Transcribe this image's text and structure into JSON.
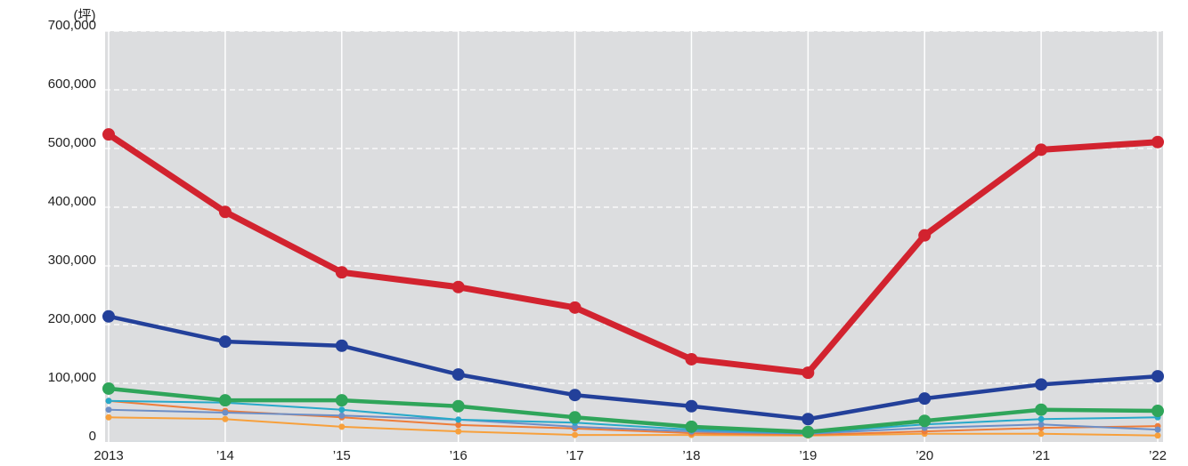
{
  "chart_data": {
    "type": "line",
    "ylabel": "(坪)",
    "categories": [
      "2013",
      "’14",
      "’15",
      "’16",
      "’17",
      "’18",
      "’19",
      "’20",
      "’21",
      "’22"
    ],
    "ylim": [
      0,
      700000
    ],
    "yticks": [
      0,
      {
        "value": 100000,
        "label": "100,000"
      },
      {
        "value": 200000,
        "label": "200,000"
      },
      {
        "value": 300000,
        "label": "300,000"
      },
      {
        "value": 400000,
        "label": "400,000"
      },
      {
        "value": 500000,
        "label": "500,000"
      },
      {
        "value": 600000,
        "label": "600,000"
      },
      {
        "value": 700000,
        "label": "700,000"
      }
    ],
    "grid": true,
    "series": [
      {
        "color": "#f7a03c",
        "values": [
          42000,
          39000,
          26000,
          18000,
          12000,
          12000,
          11000,
          14000,
          14000,
          11000
        ]
      },
      {
        "color": "#ee7d3a",
        "values": [
          70000,
          53000,
          42000,
          29000,
          23000,
          15000,
          12000,
          18000,
          24000,
          27000
        ]
      },
      {
        "color": "#6d8fc7",
        "values": [
          55000,
          50000,
          45000,
          38000,
          26000,
          18000,
          14000,
          24000,
          30000,
          21000
        ]
      },
      {
        "color": "#27a9c9",
        "values": [
          70000,
          67000,
          55000,
          38000,
          33000,
          21000,
          15000,
          30000,
          39000,
          42000
        ]
      },
      {
        "color": "#2fa55a",
        "values": [
          91000,
          71000,
          71000,
          61000,
          42000,
          26000,
          17000,
          36000,
          55000,
          53000
        ]
      },
      {
        "color": "#23409a",
        "values": [
          214000,
          171000,
          164000,
          115000,
          80000,
          61000,
          39000,
          74000,
          98000,
          112000
        ]
      },
      {
        "color": "#d2232f",
        "values": [
          524000,
          392000,
          289000,
          264000,
          229000,
          141000,
          118000,
          352000,
          498000,
          511000
        ]
      }
    ]
  }
}
